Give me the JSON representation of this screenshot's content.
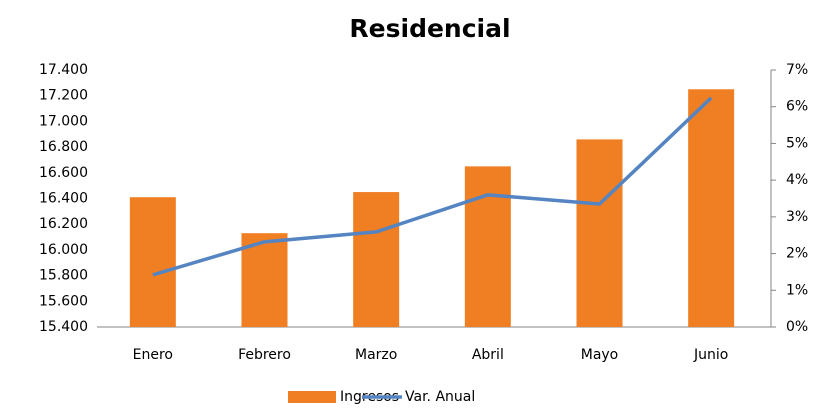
{
  "chart_data": {
    "type": "bar",
    "title": "Residencial",
    "categories": [
      "Enero",
      "Febrero",
      "Marzo",
      "Abril",
      "Mayo",
      "Junio"
    ],
    "series": [
      {
        "name": "Ingresos",
        "color": "#f07e22",
        "type": "bar",
        "values": [
          16410,
          16130,
          16450,
          16650,
          16860,
          17250
        ]
      },
      {
        "name": "Var. Anual",
        "color": "#5584c2",
        "type": "line",
        "axis": "y2",
        "values": [
          1.42,
          2.32,
          2.59,
          3.6,
          3.35,
          6.24
        ]
      }
    ],
    "ylim": [
      15400,
      17400
    ],
    "yticks": [
      {
        "value": 15400,
        "label": "15.400"
      },
      {
        "value": 15600,
        "label": "15.600"
      },
      {
        "value": 15800,
        "label": "15.800"
      },
      {
        "value": 16000,
        "label": "16.000"
      },
      {
        "value": 16200,
        "label": "16.200"
      },
      {
        "value": 16400,
        "label": "16.400"
      },
      {
        "value": 16600,
        "label": "16.600"
      },
      {
        "value": 16800,
        "label": "16.800"
      },
      {
        "value": 17000,
        "label": "17.000"
      },
      {
        "value": 17200,
        "label": "17.200"
      },
      {
        "value": 17400,
        "label": "17.400"
      }
    ],
    "y2lim": [
      0,
      7
    ],
    "y2ticks": [
      {
        "value": 0,
        "label": "0%"
      },
      {
        "value": 1,
        "label": "1%"
      },
      {
        "value": 2,
        "label": "2%"
      },
      {
        "value": 3,
        "label": "3%"
      },
      {
        "value": 4,
        "label": "4%"
      },
      {
        "value": 5,
        "label": "5%"
      },
      {
        "value": 6,
        "label": "6%"
      },
      {
        "value": 7,
        "label": "7%"
      }
    ],
    "grid": false,
    "legend": "bottom"
  }
}
